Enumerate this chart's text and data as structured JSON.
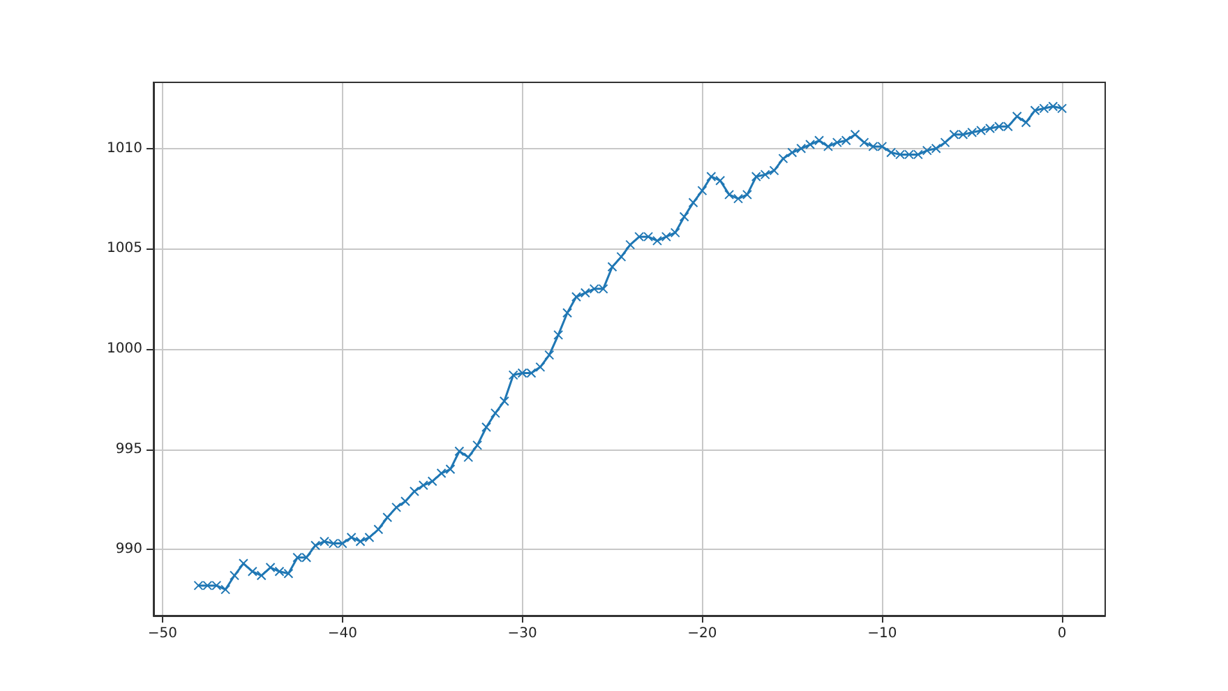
{
  "chart_data": {
    "type": "line",
    "marker": "cross",
    "grid": true,
    "color": "#1f77b4",
    "x": [
      -48,
      -47.5,
      -47,
      -46.5,
      -46,
      -45.5,
      -45,
      -44.5,
      -44,
      -43.5,
      -43,
      -42.5,
      -42,
      -41.5,
      -41,
      -40.5,
      -40,
      -39.5,
      -39,
      -38.5,
      -38,
      -37.5,
      -37,
      -36.5,
      -36,
      -35.5,
      -35,
      -34.5,
      -34,
      -33.5,
      -33,
      -32.5,
      -32,
      -31.5,
      -31,
      -30.5,
      -30,
      -29.5,
      -29,
      -28.5,
      -28,
      -27.5,
      -27,
      -26.5,
      -26,
      -25.5,
      -25,
      -24.5,
      -24,
      -23.5,
      -23,
      -22.5,
      -22,
      -21.5,
      -21,
      -20.5,
      -20,
      -19.5,
      -19,
      -18.5,
      -18,
      -17.5,
      -17,
      -16.5,
      -16,
      -15.5,
      -15,
      -14.5,
      -14,
      -13.5,
      -13,
      -12.5,
      -12,
      -11.5,
      -11,
      -10.5,
      -10,
      -9.5,
      -9,
      -8.5,
      -8,
      -7.5,
      -7,
      -6.5,
      -6,
      -5.5,
      -5,
      -4.5,
      -4,
      -3.5,
      -3,
      -2.5,
      -2,
      -1.5,
      -1,
      -0.5,
      0
    ],
    "values": [
      988.2,
      988.2,
      988.2,
      988.0,
      988.7,
      989.3,
      988.9,
      988.7,
      989.1,
      988.9,
      988.8,
      989.6,
      989.6,
      990.2,
      990.4,
      990.3,
      990.3,
      990.6,
      990.4,
      990.6,
      991.0,
      991.6,
      992.1,
      992.4,
      992.9,
      993.2,
      993.4,
      993.8,
      994.0,
      994.9,
      994.6,
      995.2,
      996.1,
      996.8,
      997.4,
      998.7,
      998.8,
      998.8,
      999.1,
      999.7,
      1000.7,
      1001.8,
      1002.6,
      1002.8,
      1003.0,
      1003.0,
      1004.1,
      1004.6,
      1005.2,
      1005.6,
      1005.6,
      1005.4,
      1005.6,
      1005.8,
      1006.6,
      1007.3,
      1007.9,
      1008.6,
      1008.4,
      1007.7,
      1007.5,
      1007.7,
      1008.6,
      1008.7,
      1008.9,
      1009.5,
      1009.8,
      1010.0,
      1010.2,
      1010.4,
      1010.1,
      1010.3,
      1010.4,
      1010.7,
      1010.3,
      1010.1,
      1010.1,
      1009.8,
      1009.7,
      1009.7,
      1009.7,
      1009.9,
      1010.0,
      1010.3,
      1010.7,
      1010.7,
      1010.8,
      1010.9,
      1011.0,
      1011.1,
      1011.1,
      1011.6,
      1011.3,
      1011.9,
      1012.0,
      1012.1,
      1012.0
    ],
    "xlim": [
      -50.5,
      2.4
    ],
    "ylim": [
      986.7,
      1013.3
    ],
    "xticks": [
      -50,
      -40,
      -30,
      -20,
      -10,
      0
    ],
    "yticks": [
      990,
      995,
      1000,
      1005,
      1010
    ]
  }
}
